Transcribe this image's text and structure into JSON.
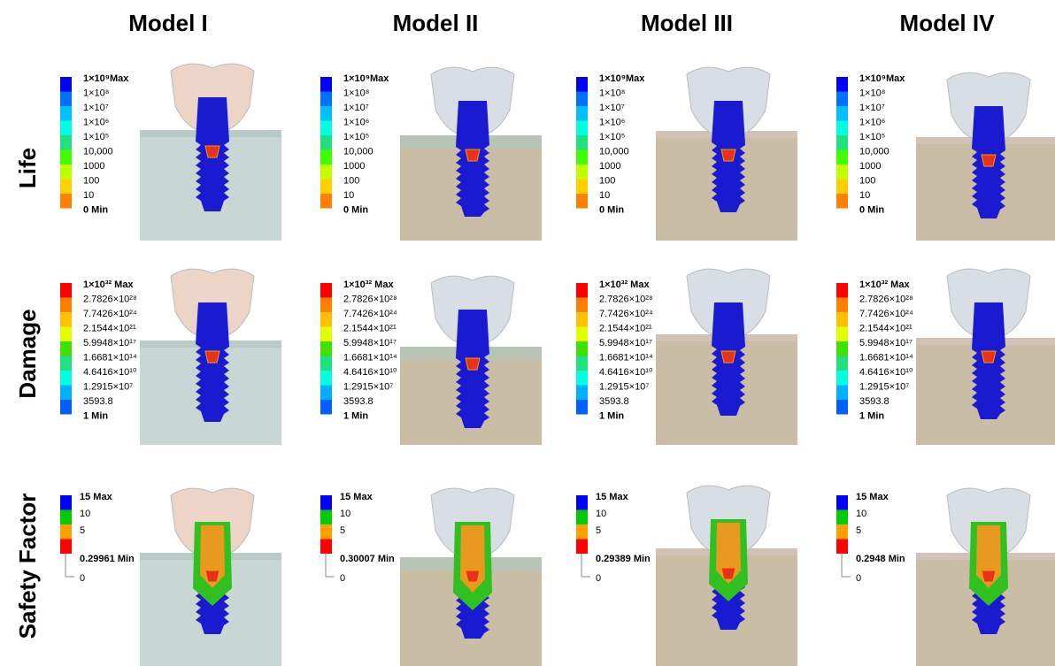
{
  "columns": [
    "Model I",
    "Model II",
    "Model III",
    "Model IV"
  ],
  "rows": [
    "Life",
    "Damage",
    "Safety Factor"
  ],
  "cells": [
    [
      [
        "1×10⁹Max",
        "1×10⁸",
        "1×10⁷",
        "1×10⁶",
        "1×10⁵",
        "10,000",
        "1000",
        "100",
        "10",
        "0 Min"
      ],
      [
        "1×10⁹Max",
        "1×10⁸",
        "1×10⁷",
        "1×10⁶",
        "1×10⁵",
        "10,000",
        "1000",
        "100",
        "10",
        "0 Min"
      ],
      [
        "1×10⁹Max",
        "1×10⁸",
        "1×10⁷",
        "1×10⁶",
        "1×10⁵",
        "10,000",
        "1000",
        "100",
        "10",
        "0 Min"
      ],
      [
        "1×10⁹Max",
        "1×10⁸",
        "1×10⁷",
        "1×10⁶",
        "1×10⁵",
        "10,000",
        "1000",
        "100",
        "10",
        "0 Min"
      ]
    ],
    [
      [
        "1×10³² Max",
        "2.7826×10²⁸",
        "7.7426×10²⁴",
        "2.1544×10²¹",
        "5.9948×10¹⁷",
        "1.6681×10¹⁴",
        "4.6416×10¹⁰",
        "1.2915×10⁷",
        "3593.8",
        "1 Min"
      ],
      [
        "1×10³² Max",
        "2.7826×10²⁸",
        "7.7426×10²⁴",
        "2.1544×10²¹",
        "5.9948×10¹⁷",
        "1.6681×10¹⁴",
        "4.6416×10¹⁰",
        "1.2915×10⁷",
        "3593.8",
        "1 Min"
      ],
      [
        "1×10³² Max",
        "2.7826×10²⁸",
        "7.7426×10²⁴",
        "2.1544×10²¹",
        "5.9948×10¹⁷",
        "1.6681×10¹⁴",
        "4.6416×10¹⁰",
        "1.2915×10⁷",
        "3593.8",
        "1 Min"
      ],
      [
        "1×10³² Max",
        "2.7826×10²⁸",
        "7.7426×10²⁴",
        "2.1544×10²¹",
        "5.9948×10¹⁷",
        "1.6681×10¹⁴",
        "4.6416×10¹⁰",
        "1.2915×10⁷",
        "3593.8",
        "1 Min"
      ]
    ],
    [
      [
        "15 Max",
        "10",
        "5",
        "0.29961 Min",
        "0"
      ],
      [
        "15 Max",
        "10",
        "5",
        "0.30007 Min",
        "0"
      ],
      [
        "15 Max",
        "10",
        "5",
        "0.29389 Min",
        "0"
      ],
      [
        "15 Max",
        "10",
        "5",
        "0.2948 Min",
        "0"
      ]
    ]
  ]
}
